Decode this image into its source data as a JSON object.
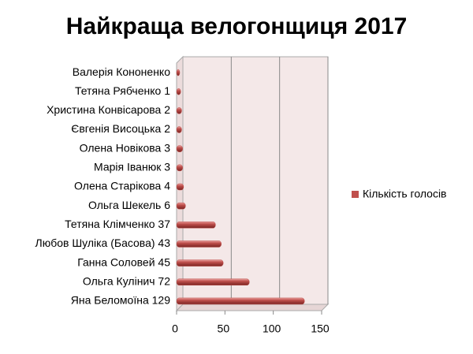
{
  "chart_data": {
    "type": "bar",
    "orientation": "horizontal",
    "title": "Найкраща велогонщиця 2017",
    "categories": [
      "Валерія Кононенко",
      "Тетяна Рябченко 1",
      "Христина Конвісарова 2",
      "Євгенія Висоцька 2",
      "Олена Новікова 3",
      "Марія Іванюк 3",
      "Олена Старікова 4",
      "Ольга Шекель 6",
      "Тетяна Клімченко 37",
      "Любов Шуліка (Басова) 43",
      "Ганна Соловей 45",
      "Ольга Кулінич 72",
      "Яна Беломоїна 129"
    ],
    "series": [
      {
        "name": "Кількість голосів",
        "color": "#c0504d",
        "values": [
          0,
          1,
          2,
          2,
          3,
          3,
          4,
          6,
          37,
          43,
          45,
          72,
          129
        ]
      }
    ],
    "xlim": [
      0,
      150
    ],
    "xticks": [
      0,
      50,
      100,
      150
    ],
    "grid": true,
    "legend": "right"
  }
}
